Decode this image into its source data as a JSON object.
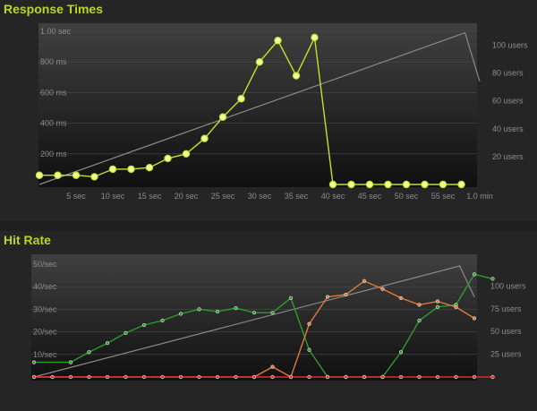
{
  "chart_data": [
    {
      "type": "line",
      "title": "Response Times",
      "x": [
        0,
        2.5,
        5,
        7.5,
        10,
        12.5,
        15,
        17.5,
        20,
        22.5,
        25,
        27.5,
        30,
        32.5,
        35,
        37.5,
        40,
        42.5,
        45,
        47.5,
        50,
        52.5,
        55,
        57.5
      ],
      "x_ticks": [
        "5 sec",
        "10 sec",
        "15 sec",
        "20 sec",
        "25 sec",
        "30 sec",
        "35 sec",
        "40 sec",
        "45 sec",
        "50 sec",
        "55 sec",
        "1.0 min"
      ],
      "x_tick_values": [
        5,
        10,
        15,
        20,
        25,
        30,
        35,
        40,
        45,
        50,
        55,
        60
      ],
      "y_left_ticks": [
        "1.00 sec",
        "800 ms",
        "600 ms",
        "400 ms",
        "200 ms"
      ],
      "y_left_tick_values": [
        1000,
        800,
        600,
        400,
        200
      ],
      "y_left_range": [
        0,
        1000
      ],
      "y_right_ticks": [
        "100 users",
        "80 users",
        "60 users",
        "40 users",
        "20 users"
      ],
      "y_right_tick_values": [
        100,
        80,
        60,
        40,
        20
      ],
      "y_right_range": [
        0,
        110
      ],
      "series": [
        {
          "axis": "left",
          "color": "#c4e02a",
          "markers": true,
          "values": [
            60,
            60,
            60,
            50,
            100,
            100,
            110,
            170,
            200,
            300,
            440,
            560,
            800,
            940,
            710,
            960,
            0,
            0,
            0,
            0,
            0,
            0,
            0,
            0
          ]
        },
        {
          "axis": "right",
          "color": "#8a8a8a",
          "markers": false,
          "points": [
            [
              0,
              0
            ],
            [
              58,
              109
            ],
            [
              60,
              74
            ]
          ]
        }
      ]
    },
    {
      "type": "line",
      "title": "Hit Rate",
      "x_range": [
        0,
        60
      ],
      "y_left_ticks": [
        "50/sec",
        "40/sec",
        "30/sec",
        "20/sec",
        "10/sec"
      ],
      "y_left_tick_values": [
        50,
        40,
        30,
        20,
        10
      ],
      "y_left_range": [
        0,
        50
      ],
      "y_right_ticks": [
        "100 users",
        "75 users",
        "50 users",
        "25 users"
      ],
      "y_right_tick_values": [
        100,
        75,
        50,
        25
      ],
      "y_right_range": [
        0,
        124
      ],
      "series": [
        {
          "axis": "left",
          "color": "#2e9a2e",
          "markers": true,
          "points": [
            [
              0,
              6.5
            ],
            [
              5,
              6.5
            ],
            [
              7.5,
              11
            ],
            [
              10,
              15
            ],
            [
              12.5,
              19.5
            ],
            [
              15,
              23
            ],
            [
              17.5,
              25
            ],
            [
              20,
              28
            ],
            [
              22.5,
              30
            ],
            [
              25,
              29
            ],
            [
              27.5,
              30.5
            ],
            [
              30,
              28.5
            ],
            [
              32.5,
              28.5
            ],
            [
              35,
              35
            ],
            [
              37.5,
              12
            ],
            [
              40,
              0
            ],
            [
              42.5,
              0
            ],
            [
              45,
              0
            ],
            [
              47.5,
              0
            ],
            [
              50,
              11
            ],
            [
              52.5,
              25
            ],
            [
              55,
              31
            ],
            [
              57.5,
              32
            ],
            [
              60,
              45.5
            ],
            [
              62.5,
              43.5
            ]
          ]
        },
        {
          "axis": "left",
          "color": "#e07838",
          "markers": true,
          "points": [
            [
              0,
              0
            ],
            [
              30,
              0
            ],
            [
              32.5,
              4.5
            ],
            [
              35,
              0
            ],
            [
              37.5,
              23.5
            ],
            [
              40,
              35.5
            ],
            [
              42.5,
              36.5
            ],
            [
              45,
              42.5
            ],
            [
              47.5,
              39
            ],
            [
              50,
              35
            ],
            [
              52.5,
              32
            ],
            [
              55,
              33.5
            ],
            [
              57.5,
              31
            ],
            [
              60,
              26
            ]
          ]
        },
        {
          "axis": "left",
          "color": "#e02a2a",
          "markers": true,
          "points": [
            [
              0,
              0
            ],
            [
              2.5,
              0
            ],
            [
              5,
              0
            ],
            [
              7.5,
              0
            ],
            [
              10,
              0
            ],
            [
              12.5,
              0
            ],
            [
              15,
              0
            ],
            [
              17.5,
              0
            ],
            [
              20,
              0
            ],
            [
              22.5,
              0
            ],
            [
              25,
              0
            ],
            [
              27.5,
              0
            ],
            [
              30,
              0
            ],
            [
              32.5,
              0
            ],
            [
              35,
              0
            ],
            [
              37.5,
              0
            ],
            [
              40,
              0
            ],
            [
              42.5,
              0
            ],
            [
              45,
              0
            ],
            [
              47.5,
              0
            ],
            [
              50,
              0
            ],
            [
              52.5,
              0
            ],
            [
              55,
              0
            ],
            [
              57.5,
              0
            ],
            [
              60,
              0
            ],
            [
              62.5,
              0
            ]
          ]
        },
        {
          "axis": "right",
          "color": "#8a8a8a",
          "markers": false,
          "points": [
            [
              0,
              0
            ],
            [
              58,
              122
            ],
            [
              60,
              88
            ]
          ]
        }
      ]
    }
  ]
}
